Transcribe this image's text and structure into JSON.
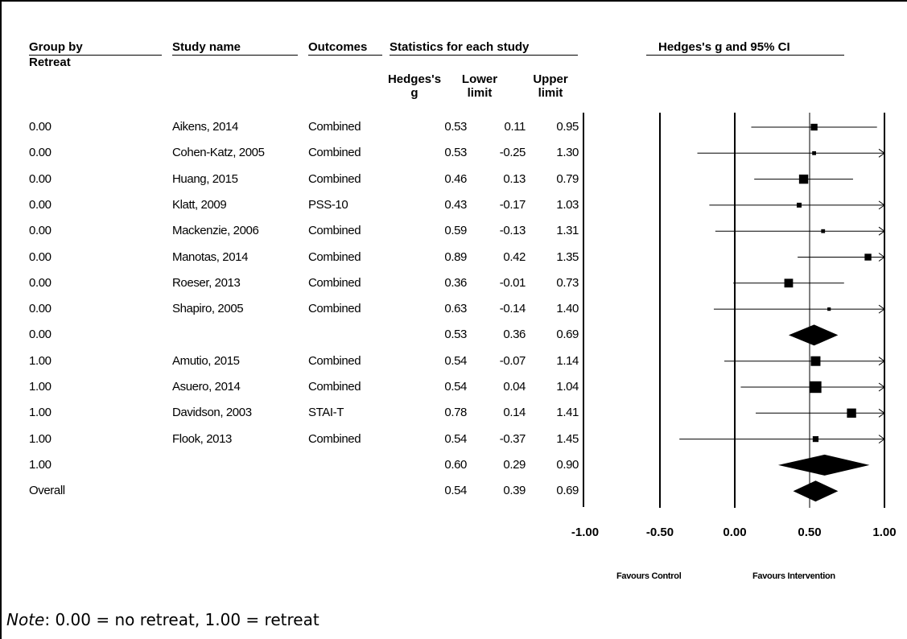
{
  "headers": {
    "group": "Group by",
    "group2": "Retreat",
    "study": "Study name",
    "outcomes": "Outcomes",
    "statistics": "Statistics for each study",
    "plot": "Hedges's g and 95% CI",
    "g": "Hedges's g",
    "lower": "Lower limit",
    "upper": "Upper limit"
  },
  "favours": {
    "left": "Favours Control",
    "right": "Favours Intervention"
  },
  "note": {
    "italic": "Note",
    "text": ": 0.00 = no retreat, 1.00 = retreat"
  },
  "chart_data": {
    "type": "forest",
    "x_ticks": [
      "-1.00",
      "-0.50",
      "0.00",
      "0.50",
      "1.00"
    ],
    "xlim": [
      -1,
      1
    ],
    "rows": [
      {
        "group": "0.00",
        "study": "Aikens, 2014",
        "outcome": "Combined",
        "g": 0.53,
        "lower": 0.11,
        "upper": 0.95,
        "g_text": "0.53",
        "lower_text": "0.11",
        "upper_text": "0.95",
        "kind": "study",
        "weight": 1.4
      },
      {
        "group": "0.00",
        "study": "Cohen-Katz, 2005",
        "outcome": "Combined",
        "g": 0.53,
        "lower": -0.25,
        "upper": 1.3,
        "g_text": "0.53",
        "lower_text": "-0.25",
        "upper_text": "1.30",
        "kind": "study",
        "weight": 0.8
      },
      {
        "group": "0.00",
        "study": "Huang, 2015",
        "outcome": "Combined",
        "g": 0.46,
        "lower": 0.13,
        "upper": 0.79,
        "g_text": "0.46",
        "lower_text": "0.13",
        "upper_text": "0.79",
        "kind": "study",
        "weight": 1.9
      },
      {
        "group": "0.00",
        "study": "Klatt, 2009",
        "outcome": "PSS-10",
        "g": 0.43,
        "lower": -0.17,
        "upper": 1.03,
        "g_text": "0.43",
        "lower_text": "-0.17",
        "upper_text": "1.03",
        "kind": "study",
        "weight": 1.0
      },
      {
        "group": "0.00",
        "study": "Mackenzie, 2006",
        "outcome": "Combined",
        "g": 0.59,
        "lower": -0.13,
        "upper": 1.31,
        "g_text": "0.59",
        "lower_text": "-0.13",
        "upper_text": "1.31",
        "kind": "study",
        "weight": 0.8
      },
      {
        "group": "0.00",
        "study": "Manotas, 2014",
        "outcome": "Combined",
        "g": 0.89,
        "lower": 0.42,
        "upper": 1.35,
        "g_text": "0.89",
        "lower_text": "0.42",
        "upper_text": "1.35",
        "kind": "study",
        "weight": 1.4
      },
      {
        "group": "0.00",
        "study": "Roeser, 2013",
        "outcome": "Combined",
        "g": 0.36,
        "lower": -0.01,
        "upper": 0.73,
        "g_text": "0.36",
        "lower_text": "-0.01",
        "upper_text": "0.73",
        "kind": "study",
        "weight": 1.8
      },
      {
        "group": "0.00",
        "study": "Shapiro, 2005",
        "outcome": "Combined",
        "g": 0.63,
        "lower": -0.14,
        "upper": 1.4,
        "g_text": "0.63",
        "lower_text": "-0.14",
        "upper_text": "1.40",
        "kind": "study",
        "weight": 0.7
      },
      {
        "group": "0.00",
        "study": "",
        "outcome": "",
        "g": 0.53,
        "lower": 0.36,
        "upper": 0.69,
        "g_text": "0.53",
        "lower_text": "0.36",
        "upper_text": "0.69",
        "kind": "summary"
      },
      {
        "group": "1.00",
        "study": "Amutio, 2015",
        "outcome": "Combined",
        "g": 0.54,
        "lower": -0.07,
        "upper": 1.14,
        "g_text": "0.54",
        "lower_text": "-0.07",
        "upper_text": "1.14",
        "kind": "study",
        "weight": 2.0
      },
      {
        "group": "1.00",
        "study": "Asuero, 2014",
        "outcome": "Combined",
        "g": 0.54,
        "lower": 0.04,
        "upper": 1.04,
        "g_text": "0.54",
        "lower_text": "0.04",
        "upper_text": "1.04",
        "kind": "study",
        "weight": 2.4
      },
      {
        "group": "1.00",
        "study": "Davidson, 2003",
        "outcome": "STAI-T",
        "g": 0.78,
        "lower": 0.14,
        "upper": 1.41,
        "g_text": "0.78",
        "lower_text": "0.14",
        "upper_text": "1.41",
        "kind": "study",
        "weight": 1.9
      },
      {
        "group": "1.00",
        "study": "Flook, 2013",
        "outcome": "Combined",
        "g": 0.54,
        "lower": -0.37,
        "upper": 1.45,
        "g_text": "0.54",
        "lower_text": "-0.37",
        "upper_text": "1.45",
        "kind": "study",
        "weight": 1.2
      },
      {
        "group": "1.00",
        "study": "",
        "outcome": "",
        "g": 0.6,
        "lower": 0.29,
        "upper": 0.9,
        "g_text": "0.60",
        "lower_text": "0.29",
        "upper_text": "0.90",
        "kind": "summary"
      },
      {
        "group": "Overall",
        "study": "",
        "outcome": "",
        "g": 0.54,
        "lower": 0.39,
        "upper": 0.69,
        "g_text": "0.54",
        "lower_text": "0.39",
        "upper_text": "0.69",
        "kind": "summary"
      }
    ]
  }
}
